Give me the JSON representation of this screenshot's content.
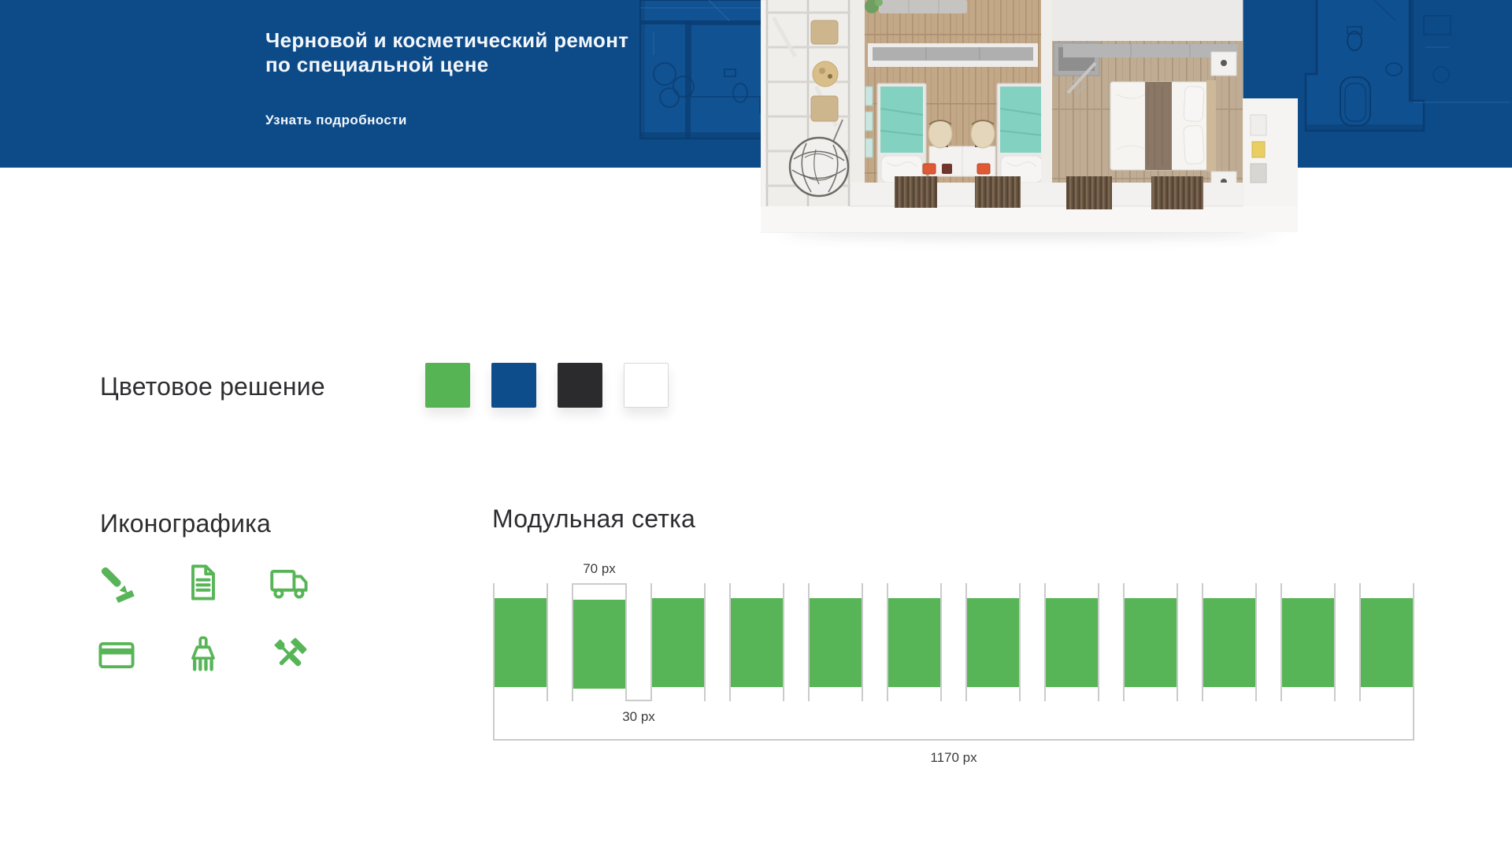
{
  "banner": {
    "background": "#0C4A88",
    "title_line1": "Черновой и косметический ремонт",
    "title_line2": "по специальной цене",
    "cta": "Узнать подробности"
  },
  "colors_section": {
    "title": "Цветовое решение",
    "swatches": [
      {
        "name": "brand-green",
        "hex": "#56B455"
      },
      {
        "name": "brand-blue",
        "hex": "#0E4D8C"
      },
      {
        "name": "brand-dark",
        "hex": "#2B2B2D"
      },
      {
        "name": "brand-white",
        "hex": "#FFFFFF",
        "border": "#D8D8D8"
      }
    ]
  },
  "icons_section": {
    "title": "Иконографика",
    "icon_color": "#58B557",
    "icons": [
      {
        "name": "pencil-edit-icon"
      },
      {
        "name": "document-icon"
      },
      {
        "name": "truck-icon"
      },
      {
        "name": "credit-card-icon"
      },
      {
        "name": "brush-icon"
      },
      {
        "name": "tools-icon"
      }
    ]
  },
  "grid_section": {
    "title": "Модульная сетка",
    "columns": 12,
    "column_color": "#58B557",
    "line_color": "#CBCBCB",
    "column_width_label": "70 px",
    "gutter_label": "30 px",
    "total_width_label": "1170 px"
  }
}
